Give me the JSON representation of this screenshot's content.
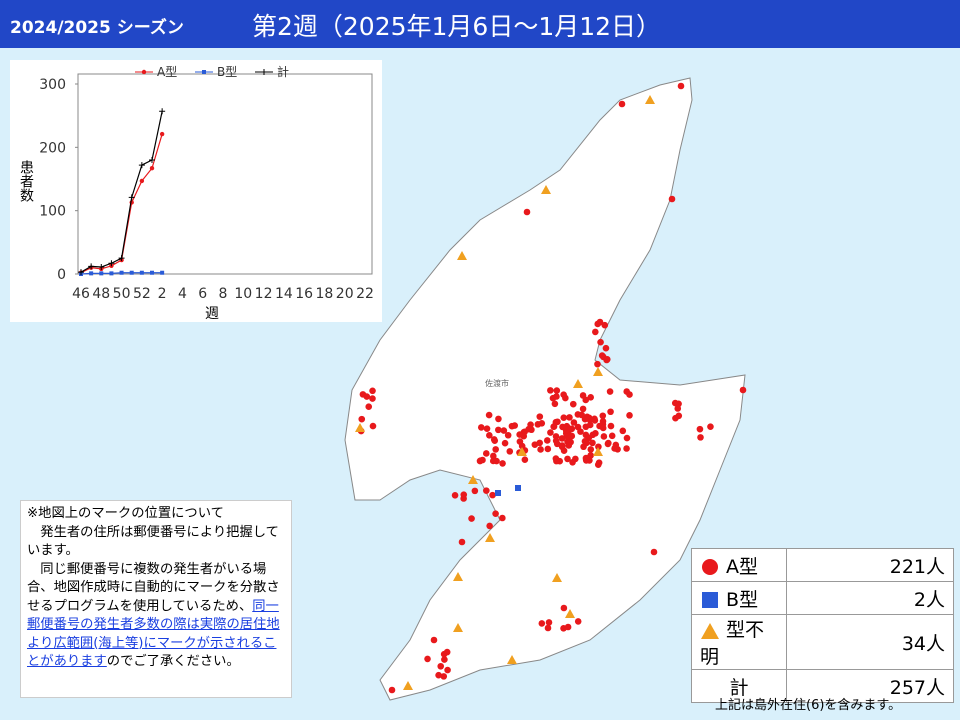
{
  "header": {
    "season": "2024/2025 シーズン",
    "title": "第2週（2025年1月6日～1月12日）"
  },
  "chart_data": {
    "type": "line",
    "categories": [
      "46",
      null,
      "48",
      null,
      "50",
      null,
      "52",
      null,
      "2",
      null,
      "4",
      null,
      "6",
      null,
      "8",
      null,
      "10",
      null,
      "12",
      null,
      "14",
      null,
      "16",
      null,
      "18",
      null,
      "20",
      null,
      "22"
    ],
    "series": [
      {
        "name": "A型",
        "color": "#e8191c",
        "marker": "circle",
        "values": [
          2,
          10,
          8,
          13,
          22,
          113,
          147,
          167,
          221,
          null,
          null,
          null,
          null,
          null,
          null,
          null,
          null,
          null,
          null,
          null,
          null,
          null,
          null,
          null,
          null,
          null,
          null,
          null,
          null
        ]
      },
      {
        "name": "B型",
        "color": "#2a5bd7",
        "marker": "square",
        "values": [
          0,
          1,
          1,
          1,
          2,
          2,
          2,
          2,
          2,
          null,
          null,
          null,
          null,
          null,
          null,
          null,
          null,
          null,
          null,
          null,
          null,
          null,
          null,
          null,
          null,
          null,
          null,
          null,
          null
        ]
      },
      {
        "name": "計",
        "color": "#000000",
        "marker": "plus",
        "values": [
          3,
          12,
          11,
          17,
          25,
          121,
          172,
          180,
          257,
          null,
          null,
          null,
          null,
          null,
          null,
          null,
          null,
          null,
          null,
          null,
          null,
          null,
          null,
          null,
          null,
          null,
          null,
          null,
          null
        ]
      }
    ],
    "ylabel": "患者数",
    "xlabel": "週",
    "ylim": [
      0,
      300
    ],
    "yticks": [
      0,
      100,
      200,
      300
    ],
    "grid": false,
    "legend": "top"
  },
  "map": {
    "label": "佐渡市"
  },
  "legend_table": {
    "rows": [
      [
        "A型",
        "221人"
      ],
      [
        "B型",
        "2人"
      ],
      [
        "型不明",
        "34人"
      ],
      [
        "計",
        "257人"
      ]
    ],
    "footnote": "上記は島外在住(6)を含みます。"
  },
  "note": {
    "lines": [
      "※地図上のマークの位置について",
      "　発生者の住所は郵便番号により把握しています。",
      "　同じ郵便番号に複数の発生者がいる場合、地図作成時に自動的にマークを分散させるプログラムを使用しているため、"
    ],
    "link": "同一郵便番号の発生者多数の際は実際の居住地より広範囲(海上等)にマークが示されることがあります",
    "tail": "のでご了承ください。"
  }
}
